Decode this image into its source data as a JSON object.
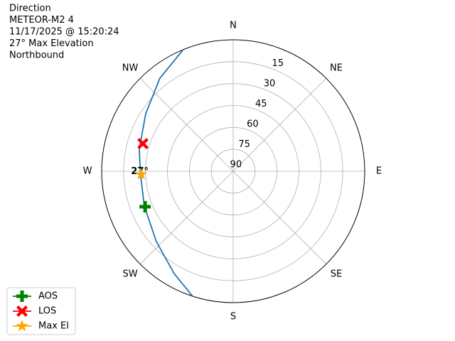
{
  "chart_data": {
    "type": "polar",
    "title_lines": [
      "Direction",
      "METEOR-M2 4",
      "11/17/2025 @ 15:20:24",
      "27° Max Elevation",
      "Northbound"
    ],
    "rlim": [
      90,
      0
    ],
    "rticks": [
      90,
      75,
      60,
      45,
      30,
      15
    ],
    "thetaticks": [
      {
        "value": 0,
        "label": "N"
      },
      {
        "value": 45,
        "label": "NE"
      },
      {
        "value": 90,
        "label": "E"
      },
      {
        "value": 135,
        "label": "SE"
      },
      {
        "value": 180,
        "label": "S"
      },
      {
        "value": 225,
        "label": "SW"
      },
      {
        "value": 270,
        "label": "W"
      },
      {
        "value": 315,
        "label": "NW"
      }
    ],
    "grid": true,
    "track": {
      "color": "#1f77b4",
      "theta": [
        337.7,
        321.8,
        303.4,
        283.2,
        268,
        248.6,
        227.5,
        210,
        198
      ],
      "r": [
        0,
        8.9,
        18.3,
        24.0,
        26.5,
        24.7,
        18.7,
        9.1,
        0
      ]
    },
    "markers": [
      {
        "name": "AOS",
        "color": "green",
        "marker": "plus",
        "theta": 248,
        "r": 25
      },
      {
        "name": "LOS",
        "color": "red",
        "marker": "x",
        "theta": 287,
        "r": 25.4
      },
      {
        "name": "Max El",
        "color": "orange",
        "marker": "star",
        "theta": 268,
        "r": 27
      }
    ],
    "annotation": {
      "text": "27°",
      "theta": 268,
      "r": 27
    },
    "legend_position": "lower left"
  }
}
